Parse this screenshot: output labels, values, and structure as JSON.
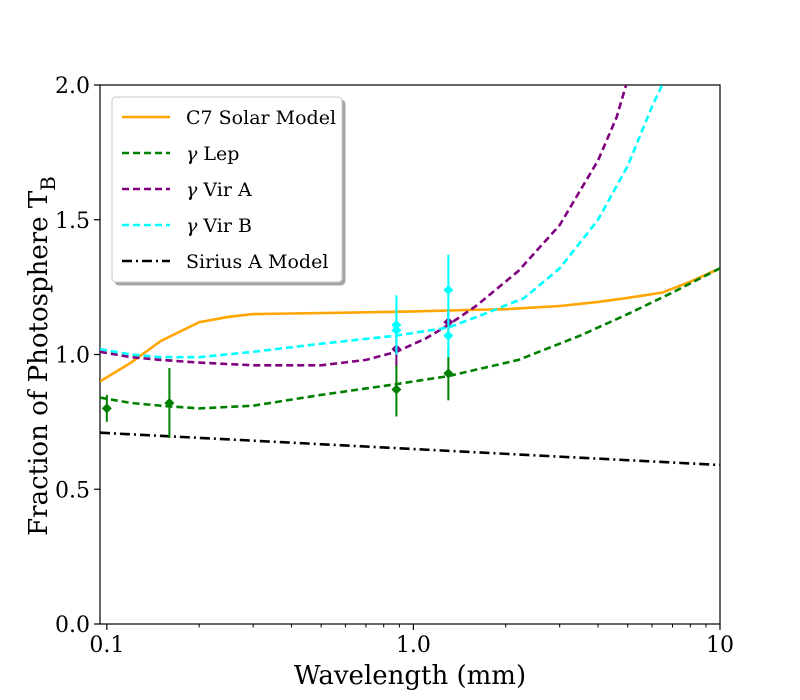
{
  "chart_data": {
    "type": "line",
    "xlabel": "Wavelength (mm)",
    "ylabel": "Fraction of Photosphere T",
    "ylabel_subscript": "B",
    "x_scale": "log",
    "xlim": [
      0.095,
      10
    ],
    "ylim": [
      0,
      2
    ],
    "x_ticks": [
      {
        "value": 0.1,
        "label": "0.1"
      },
      {
        "value": 1.0,
        "label": "1.0"
      },
      {
        "value": 10,
        "label": "10"
      }
    ],
    "y_ticks": [
      {
        "value": 0.0,
        "label": "0.0"
      },
      {
        "value": 0.5,
        "label": "0.5"
      },
      {
        "value": 1.0,
        "label": "1.0"
      },
      {
        "value": 1.5,
        "label": "1.5"
      },
      {
        "value": 2.0,
        "label": "2.0"
      }
    ],
    "legend_position": "top-left",
    "series": [
      {
        "name": "C7 Solar Model",
        "legend_symbol": "",
        "legend_text": "C7 Solar Model",
        "color": "#FFA500",
        "style": "solid",
        "x": [
          0.095,
          0.12,
          0.15,
          0.2,
          0.25,
          0.3,
          0.4,
          0.6,
          1.0,
          1.5,
          2.0,
          3.0,
          4.0,
          5.0,
          6.5,
          8.0,
          10.0
        ],
        "y": [
          0.9,
          0.97,
          1.05,
          1.12,
          1.14,
          1.15,
          1.152,
          1.155,
          1.16,
          1.165,
          1.168,
          1.18,
          1.195,
          1.21,
          1.23,
          1.27,
          1.32
        ]
      },
      {
        "name": "γ Lep",
        "legend_symbol": "γ",
        "legend_text": "Lep",
        "color": "#008000",
        "style": "dashed",
        "x": [
          0.095,
          0.12,
          0.15,
          0.2,
          0.3,
          0.5,
          0.88,
          1.3,
          2.2,
          3.5,
          5.0,
          7.0,
          10.0
        ],
        "y": [
          0.84,
          0.82,
          0.81,
          0.8,
          0.81,
          0.85,
          0.89,
          0.92,
          0.98,
          1.07,
          1.15,
          1.23,
          1.32
        ]
      },
      {
        "name": "γ Vir A",
        "legend_symbol": "γ",
        "legend_text": "Vir A",
        "color": "#800080",
        "style": "dashed",
        "x": [
          0.095,
          0.12,
          0.15,
          0.2,
          0.3,
          0.5,
          0.7,
          0.88,
          1.1,
          1.3,
          1.6,
          2.2,
          3.0,
          4.0,
          4.6,
          5.0
        ],
        "y": [
          1.01,
          0.99,
          0.98,
          0.97,
          0.96,
          0.96,
          0.98,
          1.01,
          1.06,
          1.11,
          1.18,
          1.31,
          1.48,
          1.72,
          1.88,
          2.02
        ]
      },
      {
        "name": "γ Vir B",
        "legend_symbol": "γ",
        "legend_text": "Vir B",
        "color": "#00FFFF",
        "style": "dashed",
        "x": [
          0.095,
          0.12,
          0.15,
          0.2,
          0.3,
          0.5,
          0.88,
          1.3,
          1.7,
          2.3,
          3.0,
          4.0,
          5.0,
          6.0,
          6.6
        ],
        "y": [
          1.02,
          1.0,
          0.99,
          0.99,
          1.01,
          1.04,
          1.07,
          1.1,
          1.15,
          1.21,
          1.32,
          1.5,
          1.7,
          1.92,
          2.02
        ]
      },
      {
        "name": "Sirius A Model",
        "legend_symbol": "",
        "legend_text": "Sirius A Model",
        "color": "#000000",
        "style": "dashdot",
        "x": [
          0.095,
          10.0
        ],
        "y": [
          0.71,
          0.59
        ]
      }
    ],
    "error_points": [
      {
        "series": "γ Lep",
        "color": "#008000",
        "x": 0.1,
        "y": 0.8,
        "err": 0.05
      },
      {
        "series": "γ Lep",
        "color": "#008000",
        "x": 0.16,
        "y": 0.82,
        "err": 0.13
      },
      {
        "series": "γ Lep",
        "color": "#008000",
        "x": 0.88,
        "y": 0.87,
        "err": 0.1
      },
      {
        "series": "γ Lep",
        "color": "#008000",
        "x": 1.3,
        "y": 0.93,
        "err": 0.1
      },
      {
        "series": "γ Vir A",
        "color": "#800080",
        "x": 0.88,
        "y": 1.02,
        "err": 0.06
      },
      {
        "series": "γ Vir A",
        "color": "#800080",
        "x": 1.3,
        "y": 1.12,
        "err": 0.05
      },
      {
        "series": "γ Vir B",
        "color": "#00FFFF",
        "x": 0.88,
        "y": 1.09,
        "err": 0.09
      },
      {
        "series": "γ Vir B",
        "color": "#00FFFF",
        "x": 0.88,
        "y": 1.11,
        "err": 0.11
      },
      {
        "series": "γ Vir B",
        "color": "#00FFFF",
        "x": 1.3,
        "y": 1.07,
        "err": 0.08
      },
      {
        "series": "γ Vir B",
        "color": "#00FFFF",
        "x": 1.3,
        "y": 1.24,
        "err": 0.13
      }
    ]
  }
}
